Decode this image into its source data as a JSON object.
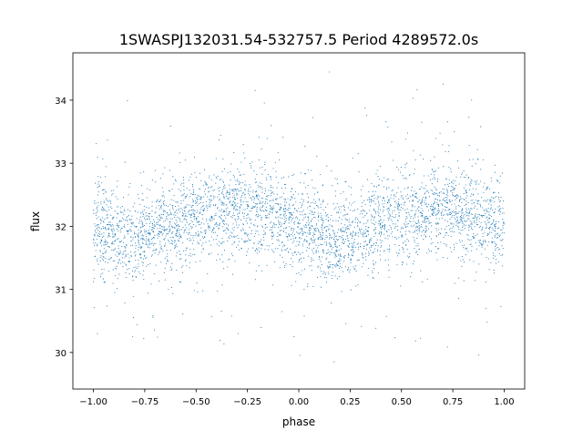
{
  "chart_data": {
    "type": "scatter",
    "title": "1SWASPJ132031.54-532757.5 Period 4289572.0s",
    "xlabel": "phase",
    "ylabel": "flux",
    "xlim": [
      -1.1,
      1.1
    ],
    "ylim": [
      29.42,
      34.75
    ],
    "xticks": [
      -1.0,
      -0.75,
      -0.5,
      -0.25,
      0.0,
      0.25,
      0.5,
      0.75,
      1.0
    ],
    "xtick_labels": [
      "−1.00",
      "−0.75",
      "−0.50",
      "−0.25",
      "0.00",
      "0.25",
      "0.50",
      "0.75",
      "1.00"
    ],
    "yticks": [
      30,
      31,
      32,
      33,
      34
    ],
    "ytick_labels": [
      "30",
      "31",
      "32",
      "33",
      "34"
    ],
    "grid": false,
    "marker_color": "#1f77b4",
    "phase_profile": {
      "phase": [
        0.0,
        0.1,
        0.2,
        0.3,
        0.4,
        0.5,
        0.6,
        0.7,
        0.8,
        0.9,
        1.0
      ],
      "median_flux": [
        32.0,
        31.85,
        31.8,
        31.9,
        32.1,
        32.15,
        32.2,
        32.3,
        32.25,
        32.1,
        32.0
      ]
    },
    "flux_scatter_sd": 0.35,
    "flux_range_observed": [
      29.65,
      34.5
    ]
  }
}
